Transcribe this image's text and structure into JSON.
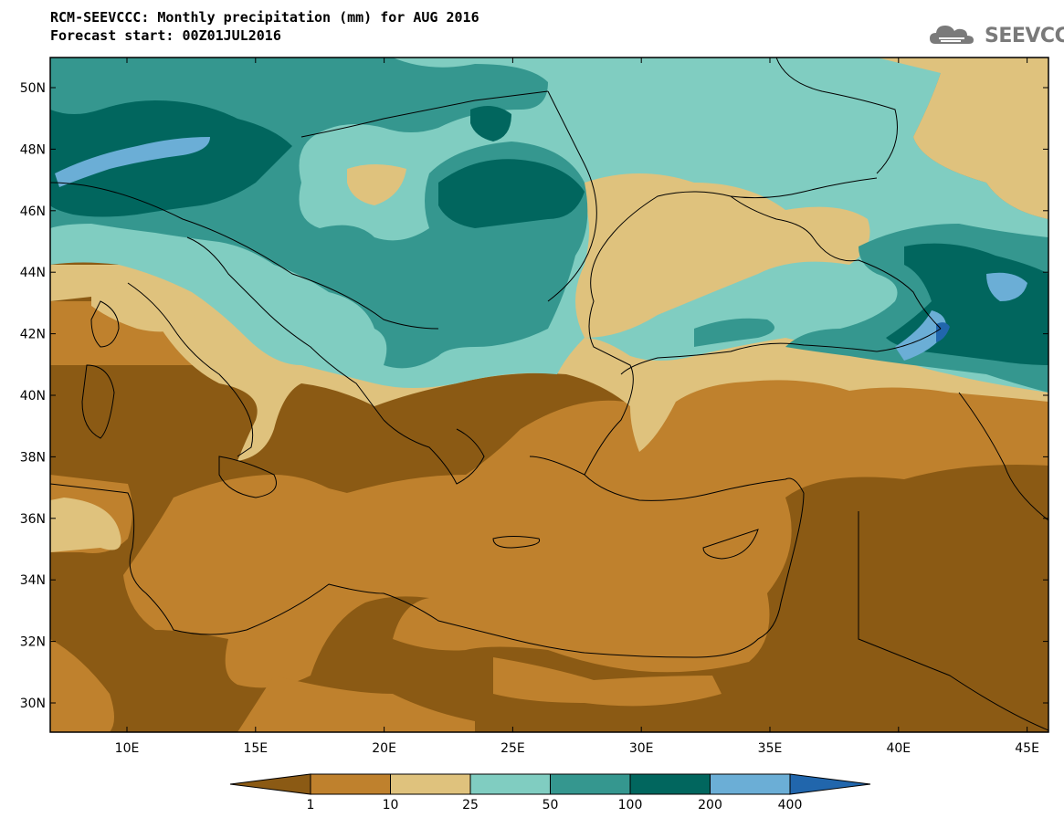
{
  "title": {
    "line1": "RCM-SEEVCCC: Monthly precipitation (mm) for AUG 2016",
    "line2": "Forecast start: 00Z01JUL2016"
  },
  "logo": {
    "text": "SEEVCCC",
    "icon": "cloud-logo-icon"
  },
  "map": {
    "lat_labels": [
      "50N",
      "48N",
      "46N",
      "44N",
      "42N",
      "40N",
      "38N",
      "36N",
      "34N",
      "32N",
      "30N"
    ],
    "lon_labels": [
      "10E",
      "15E",
      "20E",
      "25E",
      "30E",
      "35E",
      "40E",
      "45E"
    ]
  },
  "legend": {
    "colors": [
      "#8b5a14",
      "#bf812d",
      "#dfc27d",
      "#80cdc1",
      "#35978f",
      "#01665e",
      "#6baed6",
      "#2166ac"
    ],
    "labels": [
      "1",
      "10",
      "25",
      "50",
      "100",
      "200",
      "400"
    ]
  }
}
